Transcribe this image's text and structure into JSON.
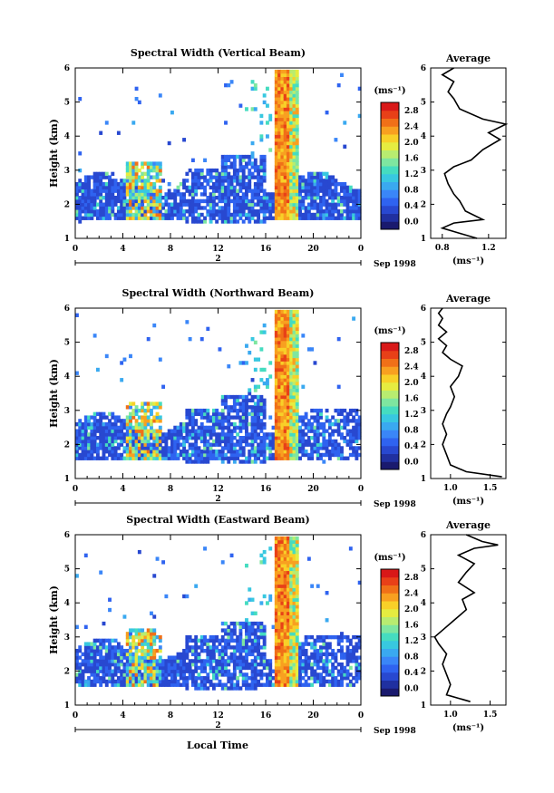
{
  "figure": {
    "xlabel": "Local Time",
    "date_label": "Sep 1998",
    "day_marker": "2"
  },
  "colorbar": {
    "unit": "(ms⁻¹)",
    "levels": [
      "0.0",
      "0.4",
      "0.8",
      "1.2",
      "1.6",
      "2.0",
      "2.4",
      "2.8"
    ],
    "colors": [
      "#1a1a6e",
      "#2030a0",
      "#2848d0",
      "#2f63f0",
      "#3a86f8",
      "#3aa9f0",
      "#38c8e0",
      "#45dcc0",
      "#7ee6a0",
      "#b8ec70",
      "#e6ec40",
      "#f8d028",
      "#f8a020",
      "#f07018",
      "#e84018",
      "#d81818"
    ]
  },
  "chart_data": [
    {
      "type": "heatmap",
      "title": "Spectral Width (Vertical Beam)",
      "ylabel": "Height (km)",
      "xlim": [
        0,
        24
      ],
      "ylim": [
        1,
        6
      ],
      "xticks": [
        "0",
        "4",
        "8",
        "12",
        "16",
        "20",
        "0"
      ],
      "yticks": [
        "1",
        "2",
        "3",
        "4",
        "5",
        "6"
      ],
      "profile": {
        "title": "Average",
        "unit": "(ms⁻¹)",
        "xticks": [
          "0.8",
          "1.2"
        ],
        "xlim": [
          0.7,
          1.35
        ],
        "yticks": [
          "1",
          "2",
          "3",
          "4",
          "5",
          "6"
        ],
        "points": [
          [
            1.1,
            1.0
          ],
          [
            0.95,
            1.15
          ],
          [
            0.8,
            1.3
          ],
          [
            0.9,
            1.45
          ],
          [
            1.15,
            1.55
          ],
          [
            1.0,
            1.8
          ],
          [
            0.95,
            2.1
          ],
          [
            0.9,
            2.3
          ],
          [
            0.85,
            2.6
          ],
          [
            0.82,
            2.9
          ],
          [
            0.9,
            3.1
          ],
          [
            1.05,
            3.3
          ],
          [
            1.15,
            3.6
          ],
          [
            1.3,
            3.9
          ],
          [
            1.2,
            4.1
          ],
          [
            1.35,
            4.35
          ],
          [
            1.15,
            4.5
          ],
          [
            0.95,
            4.8
          ],
          [
            0.9,
            5.1
          ],
          [
            0.85,
            5.3
          ],
          [
            0.9,
            5.6
          ],
          [
            0.8,
            5.8
          ],
          [
            0.9,
            6.0
          ]
        ]
      }
    },
    {
      "type": "heatmap",
      "title": "Spectral Width (Northward Beam)",
      "ylabel": "Height (km)",
      "xlim": [
        0,
        24
      ],
      "ylim": [
        1,
        6
      ],
      "xticks": [
        "0",
        "4",
        "8",
        "12",
        "16",
        "20",
        "0"
      ],
      "yticks": [
        "1",
        "2",
        "3",
        "4",
        "5",
        "6"
      ],
      "profile": {
        "title": "Average",
        "unit": "(ms⁻¹)",
        "xticks": [
          "1.0",
          "1.5"
        ],
        "xlim": [
          0.75,
          1.7
        ],
        "yticks": [
          "1",
          "2",
          "3",
          "4",
          "5",
          "6"
        ],
        "points": [
          [
            1.65,
            1.05
          ],
          [
            1.2,
            1.2
          ],
          [
            1.0,
            1.4
          ],
          [
            0.95,
            1.7
          ],
          [
            0.9,
            2.0
          ],
          [
            0.95,
            2.3
          ],
          [
            0.9,
            2.6
          ],
          [
            0.95,
            2.9
          ],
          [
            1.0,
            3.1
          ],
          [
            1.05,
            3.4
          ],
          [
            1.0,
            3.7
          ],
          [
            1.1,
            4.0
          ],
          [
            1.15,
            4.3
          ],
          [
            1.0,
            4.5
          ],
          [
            0.9,
            4.7
          ],
          [
            0.95,
            4.9
          ],
          [
            0.85,
            5.1
          ],
          [
            0.95,
            5.3
          ],
          [
            0.85,
            5.5
          ],
          [
            0.9,
            5.7
          ],
          [
            0.85,
            5.85
          ],
          [
            0.9,
            6.0
          ]
        ]
      }
    },
    {
      "type": "heatmap",
      "title": "Spectral Width (Eastward Beam)",
      "ylabel": "Height (km)",
      "xlim": [
        0,
        24
      ],
      "ylim": [
        1,
        6
      ],
      "xticks": [
        "0",
        "4",
        "8",
        "12",
        "16",
        "20",
        "0"
      ],
      "yticks": [
        "1",
        "2",
        "3",
        "4",
        "5",
        "6"
      ],
      "profile": {
        "title": "Average",
        "unit": "(ms⁻¹)",
        "xticks": [
          "1.0",
          "1.5"
        ],
        "xlim": [
          0.75,
          1.7
        ],
        "yticks": [
          "1",
          "2",
          "3",
          "4",
          "5",
          "6"
        ],
        "points": [
          [
            1.25,
            1.1
          ],
          [
            0.95,
            1.3
          ],
          [
            1.0,
            1.6
          ],
          [
            0.95,
            1.9
          ],
          [
            0.9,
            2.2
          ],
          [
            0.95,
            2.5
          ],
          [
            0.85,
            2.8
          ],
          [
            0.8,
            3.0
          ],
          [
            0.9,
            3.2
          ],
          [
            1.05,
            3.5
          ],
          [
            1.2,
            3.8
          ],
          [
            1.15,
            4.1
          ],
          [
            1.3,
            4.3
          ],
          [
            1.1,
            4.6
          ],
          [
            1.2,
            4.9
          ],
          [
            1.3,
            5.15
          ],
          [
            1.1,
            5.4
          ],
          [
            1.3,
            5.6
          ],
          [
            1.6,
            5.7
          ],
          [
            1.4,
            5.8
          ],
          [
            1.2,
            6.0
          ]
        ]
      }
    }
  ]
}
